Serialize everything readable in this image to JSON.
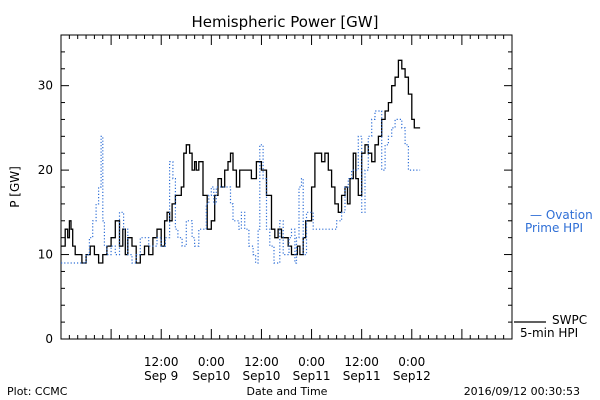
{
  "chart_data": {
    "type": "line",
    "title": "Hemispheric Power [GW]",
    "ylabel": "P [GW]",
    "xlabel": "Date and Time",
    "ylim": [
      0,
      36
    ],
    "xlim_hours": [
      -18,
      36
    ],
    "yticks": [
      0,
      10,
      20,
      30
    ],
    "xticks": [
      {
        "hour": -6,
        "time": "12:00",
        "date": "Sep 9"
      },
      {
        "hour": 0,
        "time": "0:00",
        "date": "Sep10"
      },
      {
        "hour": 6,
        "time": "12:00",
        "date": "Sep10"
      },
      {
        "hour": 12,
        "time": "0:00",
        "date": "Sep11"
      },
      {
        "hour": 18,
        "time": "12:00",
        "date": "Sep11"
      },
      {
        "hour": 24,
        "time": "0:00",
        "date": "Sep12"
      }
    ],
    "series": [
      {
        "name": "SWPC 5-min HPI",
        "style": "solid",
        "color": "#000000",
        "x": [
          -18,
          -17.5,
          -17.2,
          -17,
          -16.8,
          -16.6,
          -16.3,
          -16,
          -15.5,
          -15,
          -14.5,
          -14,
          -13.5,
          -13,
          -12.5,
          -12,
          -11.5,
          -11,
          -10.6,
          -10.3,
          -10,
          -9.5,
          -9,
          -8.5,
          -8,
          -7.5,
          -7,
          -6.5,
          -6,
          -5.6,
          -5.3,
          -5,
          -4.7,
          -4.3,
          -4,
          -3.6,
          -3.3,
          -3,
          -2.6,
          -2.3,
          -2,
          -1.8,
          -1.5,
          -1,
          -0.5,
          0,
          0.4,
          0.8,
          1.2,
          1.6,
          2,
          2.3,
          2.6,
          3,
          3.4,
          3.8,
          4.3,
          4.8,
          5.4,
          6,
          6.6,
          7.2,
          7.6,
          8,
          8.4,
          8.8,
          9.2,
          9.6,
          10,
          10.3,
          10.6,
          11,
          11.3,
          11.6,
          12,
          12.4,
          12.8,
          13.2,
          13.6,
          14,
          14.4,
          14.8,
          15.2,
          15.6,
          16,
          16.3,
          16.6,
          17,
          17.3,
          17.6,
          18,
          18.4,
          18.8,
          19.2,
          19.6,
          20,
          20.4,
          20.8,
          21.2,
          21.6,
          22,
          22.4,
          22.8,
          23.2,
          23.6,
          24,
          24.3,
          24.6,
          25
        ],
        "y": [
          11,
          13,
          12,
          14,
          13,
          11,
          10,
          10,
          9,
          10,
          11,
          10,
          9,
          10,
          11,
          12,
          14,
          11,
          13,
          10,
          12,
          11,
          9,
          10,
          11,
          10,
          12,
          13,
          11,
          14,
          15,
          14,
          16,
          17,
          17,
          18,
          22,
          23,
          22,
          20,
          21,
          20,
          21,
          17,
          13,
          14,
          17,
          19,
          18,
          20,
          21,
          22,
          20,
          18,
          20,
          20,
          20,
          19,
          21,
          20,
          17,
          13,
          12,
          13,
          12,
          12,
          11,
          10,
          10,
          11,
          10,
          12,
          14,
          14,
          18,
          22,
          22,
          21,
          22,
          20,
          18,
          16,
          15,
          17,
          18,
          16,
          19,
          22,
          19,
          17,
          22,
          23,
          22,
          21,
          23,
          24,
          26,
          27,
          28,
          30,
          31,
          33,
          32,
          31,
          29,
          26,
          25,
          25,
          25
        ]
      },
      {
        "name": "Ovation Prime HPI",
        "style": "dotted",
        "color": "#2f6fd6",
        "x": [
          -18,
          -17,
          -16,
          -15,
          -14.6,
          -14.2,
          -13.8,
          -13.5,
          -13.2,
          -13,
          -12.8,
          -12.5,
          -12,
          -11.5,
          -11,
          -10.5,
          -10,
          -9.5,
          -9,
          -8.5,
          -8,
          -7.5,
          -7,
          -6.5,
          -6,
          -5.5,
          -5,
          -4.6,
          -4.3,
          -4,
          -3.5,
          -3,
          -2.6,
          -2.3,
          -2,
          -1.5,
          -1,
          -0.6,
          -0.3,
          0,
          0.3,
          0.6,
          1,
          1.5,
          2,
          2.3,
          2.6,
          3,
          3.3,
          3.6,
          4,
          4.5,
          5,
          5.3,
          5.6,
          5.8,
          6.2,
          6.6,
          7,
          7.5,
          8,
          8.2,
          8.6,
          9,
          9.3,
          9.6,
          10,
          10.2,
          10.5,
          10.8,
          11,
          11.4,
          11.8,
          12.2,
          12.8,
          13.3,
          14,
          14.6,
          15,
          15.3,
          15.6,
          16,
          16.4,
          16.8,
          17.2,
          17.6,
          18,
          18.4,
          18.8,
          19.2,
          19.6,
          20,
          20.4,
          20.8,
          21.2,
          21.6,
          22,
          22.4,
          22.8,
          23.2,
          23.6,
          24,
          24.4,
          24.8,
          25
        ],
        "y": [
          9,
          9,
          9,
          10,
          12,
          14,
          16,
          18,
          24,
          14,
          11,
          10,
          11,
          10,
          15,
          13,
          10,
          9,
          10,
          12,
          12,
          11,
          11,
          12,
          11,
          12,
          21,
          19,
          13,
          12,
          11,
          14,
          14,
          12,
          11,
          13,
          13,
          16,
          17,
          18,
          16,
          18,
          18,
          18,
          18,
          16,
          14,
          14,
          13,
          15,
          13,
          11,
          10,
          9,
          13,
          23,
          19,
          13,
          11,
          9,
          9,
          14,
          10,
          10,
          12,
          13,
          9,
          12,
          18,
          19,
          10,
          15,
          15,
          13,
          13,
          13,
          13,
          13,
          14,
          14,
          15,
          18,
          19,
          20,
          20,
          24,
          15,
          20,
          24,
          26,
          27,
          27,
          20,
          23,
          24,
          25,
          26,
          26,
          25,
          23,
          20,
          20,
          20,
          20,
          20
        ]
      }
    ],
    "legend": [
      {
        "text": "— Ovation",
        "color": "#2f6fd6"
      },
      {
        "text": "Prime HPI",
        "color": "#2f6fd6"
      },
      {
        "text": "SWPC",
        "color": "#000000"
      },
      {
        "text": "5-min HPI",
        "color": "#000000"
      }
    ],
    "footer": {
      "left": "Plot: CCMC",
      "center": "Date and Time",
      "right": "2016/09/12 00:30:53"
    }
  }
}
